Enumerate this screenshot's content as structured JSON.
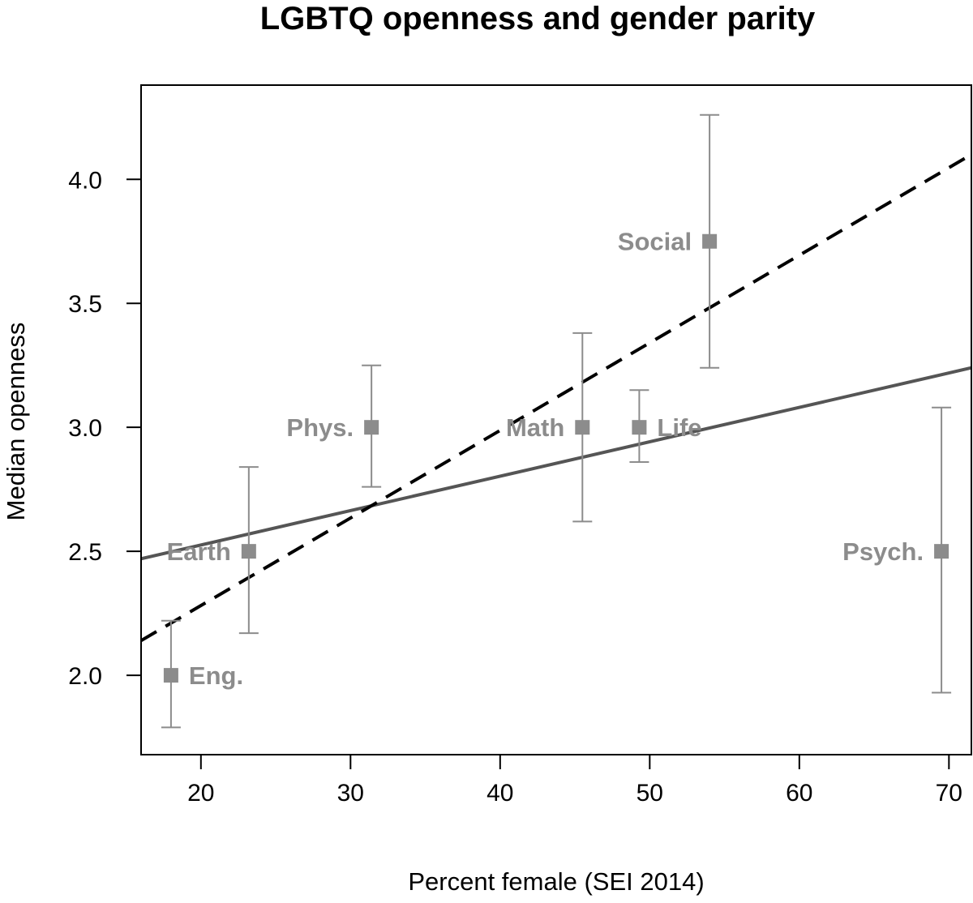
{
  "chart_data": {
    "type": "scatter",
    "title": "LGBTQ openness and gender parity",
    "xlabel": "Percent female (SEI 2014)",
    "ylabel": "Median openness",
    "xlim": [
      16,
      71.5
    ],
    "ylim": [
      1.68,
      4.38
    ],
    "x_ticks": [
      20,
      30,
      40,
      50,
      60,
      70
    ],
    "y_ticks": [
      2.0,
      2.5,
      3.0,
      3.5,
      4.0
    ],
    "x_tick_labels": [
      "20",
      "30",
      "40",
      "50",
      "60",
      "70"
    ],
    "y_tick_labels": [
      "2.0",
      "2.5",
      "3.0",
      "3.5",
      "4.0"
    ],
    "grid": false,
    "points": [
      {
        "label": "Eng.",
        "x": 18.0,
        "y": 2.0,
        "err_low": 1.79,
        "err_high": 2.22,
        "label_side": "right"
      },
      {
        "label": "Earth",
        "x": 23.2,
        "y": 2.5,
        "err_low": 2.17,
        "err_high": 2.84,
        "label_side": "left"
      },
      {
        "label": "Phys.",
        "x": 31.4,
        "y": 3.0,
        "err_low": 2.76,
        "err_high": 3.25,
        "label_side": "left"
      },
      {
        "label": "Math",
        "x": 45.5,
        "y": 3.0,
        "err_low": 2.62,
        "err_high": 3.38,
        "label_side": "left"
      },
      {
        "label": "Life",
        "x": 49.3,
        "y": 3.0,
        "err_low": 2.86,
        "err_high": 3.15,
        "label_side": "right"
      },
      {
        "label": "Social",
        "x": 54.0,
        "y": 3.75,
        "err_low": 3.24,
        "err_high": 4.26,
        "label_side": "left"
      },
      {
        "label": "Psych.",
        "x": 69.5,
        "y": 2.5,
        "err_low": 1.93,
        "err_high": 3.08,
        "label_side": "left"
      }
    ],
    "fit_lines": [
      {
        "style": "solid",
        "x": [
          16,
          71.5
        ],
        "y": [
          2.47,
          3.24
        ]
      },
      {
        "style": "dashed",
        "x": [
          16,
          71.5
        ],
        "y": [
          2.14,
          4.1
        ]
      }
    ],
    "colors": {
      "points": "#8c8c8c",
      "error_bars": "#8c8c8c",
      "solid_line": "#555555",
      "dashed_line": "#000000",
      "axes": "#000000"
    }
  }
}
